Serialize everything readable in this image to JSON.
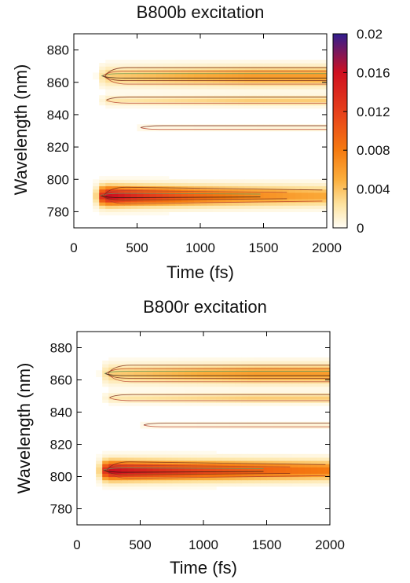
{
  "chart_data": [
    {
      "type": "heatmap",
      "title": "B800b excitation",
      "xlabel": "Time (fs)",
      "ylabel": "Wavelength (nm)",
      "xlim": [
        0,
        2000
      ],
      "ylim": [
        770,
        890
      ],
      "xticks": [
        "0",
        "500",
        "1000",
        "1500",
        "2000"
      ],
      "yticks": [
        "780",
        "800",
        "820",
        "840",
        "860",
        "880"
      ],
      "colorbar": {
        "range": [
          0,
          0.02
        ],
        "ticks": [
          "0",
          "0.004",
          "0.008",
          "0.012",
          "0.016",
          "0.02"
        ],
        "colors": [
          "#fffdf5",
          "#fde3a0",
          "#fbae3c",
          "#f57a10",
          "#e8441a",
          "#cf1020",
          "#301e90"
        ]
      },
      "bands": [
        {
          "center_nm": 790,
          "width_nm": 6,
          "onset_fs": 200,
          "peak_fs": 300,
          "peak_value": 0.0165,
          "decay_fs": 900,
          "floor_value": 0.0035
        },
        {
          "center_nm": 864,
          "width_nm": 6,
          "onset_fs": 210,
          "peak_fs": 1400,
          "peak_value": 0.0062,
          "decay_fs": 0,
          "floor_value": 0.0062
        },
        {
          "center_nm": 849,
          "width_nm": 3,
          "onset_fs": 230,
          "peak_fs": 1400,
          "peak_value": 0.0035,
          "decay_fs": 0,
          "floor_value": 0.0035
        },
        {
          "center_nm": 832,
          "width_nm": 1.8,
          "onset_fs": 500,
          "peak_fs": 1600,
          "peak_value": 0.0012,
          "decay_fs": 0,
          "floor_value": 0.0012
        }
      ]
    },
    {
      "type": "heatmap",
      "title": "B800r excitation",
      "xlabel": "Time (fs)",
      "ylabel": "Wavelength (nm)",
      "xlim": [
        0,
        2000
      ],
      "ylim": [
        770,
        890
      ],
      "xticks": [
        "0",
        "500",
        "1000",
        "1500",
        "2000"
      ],
      "yticks": [
        "780",
        "800",
        "820",
        "840",
        "860",
        "880"
      ],
      "bands": [
        {
          "center_nm": 804,
          "width_nm": 6,
          "onset_fs": 200,
          "peak_fs": 300,
          "peak_value": 0.0165,
          "decay_fs": 1400,
          "floor_value": 0.0045
        },
        {
          "center_nm": 864,
          "width_nm": 6,
          "onset_fs": 210,
          "peak_fs": 1400,
          "peak_value": 0.0062,
          "decay_fs": 0,
          "floor_value": 0.0062
        },
        {
          "center_nm": 849,
          "width_nm": 3,
          "onset_fs": 230,
          "peak_fs": 1400,
          "peak_value": 0.0035,
          "decay_fs": 0,
          "floor_value": 0.0035
        },
        {
          "center_nm": 832,
          "width_nm": 1.8,
          "onset_fs": 500,
          "peak_fs": 1600,
          "peak_value": 0.0012,
          "decay_fs": 0,
          "floor_value": 0.0012
        }
      ]
    }
  ]
}
